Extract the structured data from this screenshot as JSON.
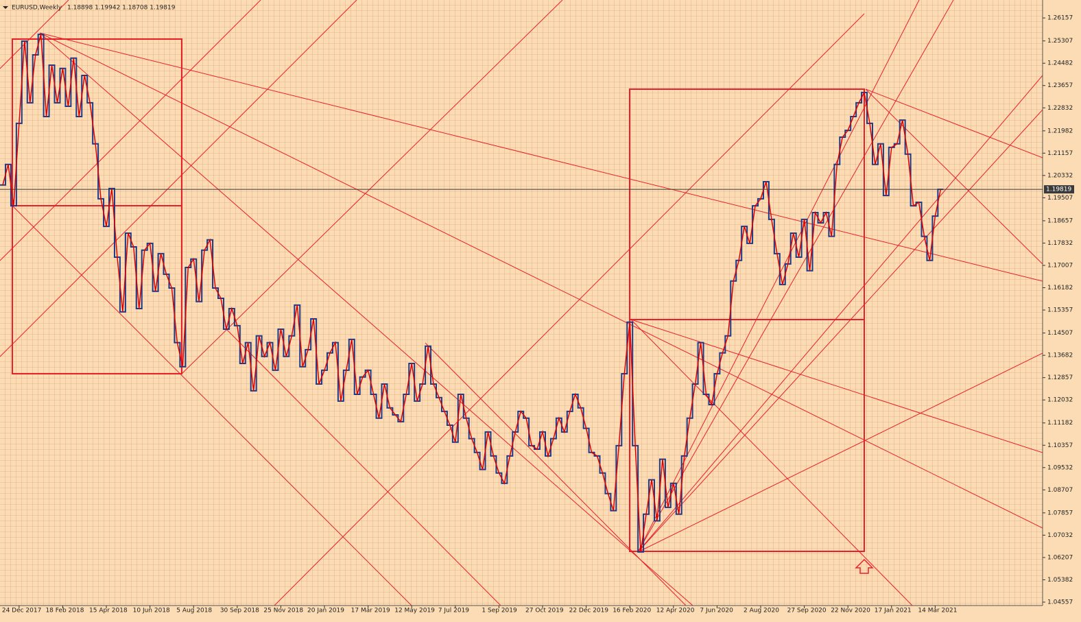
{
  "chart_data": {
    "type": "step-line",
    "title": "EURUSD,Weekly",
    "subtitle": "1.18898 1.19942 1.18708 1.19819",
    "color": "#1a3a8a",
    "line_color": "#e00000",
    "current_price": 1.19819,
    "xlim": [
      0,
      190.7
    ],
    "ylim": [
      1.0443,
      1.2682
    ],
    "yticks": [
      1.04557,
      1.05382,
      1.06207,
      1.07032,
      1.07857,
      1.08707,
      1.09532,
      1.10357,
      1.11182,
      1.12032,
      1.12857,
      1.13682,
      1.14507,
      1.15357,
      1.16182,
      1.17007,
      1.17832,
      1.18657,
      1.19507,
      1.20332,
      1.21157,
      1.21982,
      1.22832,
      1.23657,
      1.24482,
      1.25307,
      1.26157
    ],
    "xticks": [
      {
        "value": 3,
        "label": "24 Dec 2017"
      },
      {
        "value": 11,
        "label": "18 Feb 2018"
      },
      {
        "value": 19,
        "label": "15 Apr 2018"
      },
      {
        "value": 27,
        "label": "10 Jun 2018"
      },
      {
        "value": 35,
        "label": "5 Aug 2018"
      },
      {
        "value": 43,
        "label": "30 Sep 2018"
      },
      {
        "value": 51,
        "label": "25 Nov 2018"
      },
      {
        "value": 59,
        "label": "20 Jan 2019"
      },
      {
        "value": 67,
        "label": "17 Mar 2019"
      },
      {
        "value": 75,
        "label": "12 May 2019"
      },
      {
        "value": 83,
        "label": "7 Jul 2019"
      },
      {
        "value": 91,
        "label": "1 Sep 2019"
      },
      {
        "value": 99,
        "label": "27 Oct 2019"
      },
      {
        "value": 107,
        "label": "22 Dec 2019"
      },
      {
        "value": 115,
        "label": "16 Feb 2020"
      },
      {
        "value": 123,
        "label": "12 Apr 2020"
      },
      {
        "value": 131,
        "label": "7 Jun 2020"
      },
      {
        "value": 139,
        "label": "2 Aug 2020"
      },
      {
        "value": 147,
        "label": "27 Sep 2020"
      },
      {
        "value": 155,
        "label": "22 Nov 2020"
      },
      {
        "value": 163,
        "label": "17 Jan 2021"
      },
      {
        "value": 171,
        "label": "14 Mar 2021"
      }
    ],
    "values": [
      1.1998,
      1.2074,
      1.1921,
      1.2226,
      1.253,
      1.2302,
      1.2479,
      1.2555,
      1.2251,
      1.2441,
      1.2302,
      1.2429,
      1.2289,
      1.2467,
      1.2251,
      1.2403,
      1.2302,
      1.215,
      1.1947,
      1.1845,
      1.1985,
      1.1731,
      1.1529,
      1.182,
      1.1769,
      1.1541,
      1.1757,
      1.1782,
      1.1605,
      1.1744,
      1.1668,
      1.1617,
      1.1415,
      1.1326,
      1.1693,
      1.1724,
      1.1567,
      1.1757,
      1.1795,
      1.1617,
      1.1579,
      1.1465,
      1.1541,
      1.1478,
      1.1338,
      1.1415,
      1.1237,
      1.144,
      1.1364,
      1.1415,
      1.1313,
      1.1465,
      1.1364,
      1.144,
      1.1554,
      1.1326,
      1.1389,
      1.1503,
      1.1262,
      1.1313,
      1.1377,
      1.1415,
      1.1199,
      1.1313,
      1.1427,
      1.1224,
      1.1288,
      1.1313,
      1.1224,
      1.1136,
      1.1262,
      1.1174,
      1.1148,
      1.1123,
      1.1224,
      1.1338,
      1.1199,
      1.1262,
      1.1402,
      1.1262,
      1.1212,
      1.1161,
      1.111,
      1.1047,
      1.1224,
      1.1136,
      1.106,
      1.1009,
      1.0946,
      1.1085,
      1.0996,
      1.0933,
      1.0895,
      1.0996,
      1.1085,
      1.1161,
      1.1136,
      1.1034,
      1.1021,
      1.1085,
      1.0996,
      1.106,
      1.1136,
      1.1085,
      1.1161,
      1.1224,
      1.1174,
      1.1098,
      1.1009,
      1.0996,
      1.0933,
      1.0857,
      1.0794,
      1.1034,
      1.13,
      1.1491,
      1.1034,
      1.0641,
      1.0781,
      1.0908,
      1.0756,
      1.0984,
      1.0806,
      1.0895,
      1.0781,
      1.0996,
      1.1136,
      1.1262,
      1.1415,
      1.1224,
      1.1186,
      1.13,
      1.1377,
      1.144,
      1.1643,
      1.1719,
      1.1845,
      1.1782,
      1.1921,
      1.1947,
      1.201,
      1.1871,
      1.1744,
      1.163,
      1.1706,
      1.182,
      1.1731,
      1.1871,
      1.1681,
      1.1896,
      1.1858,
      1.1896,
      1.1808,
      1.2074,
      1.2175,
      1.22,
      1.2251,
      1.2302,
      1.234,
      1.2226,
      1.2074,
      1.215,
      1.1959,
      1.2137,
      1.215,
      1.2238,
      1.2112,
      1.1921,
      1.1934,
      1.1808,
      1.1719,
      1.1883,
      1.19819
    ]
  }
}
